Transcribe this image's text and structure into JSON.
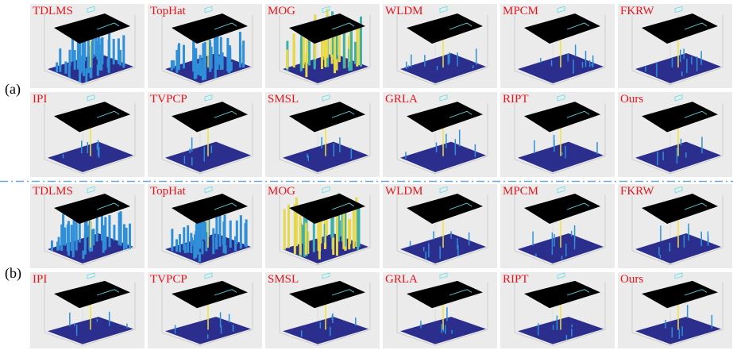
{
  "figure": {
    "groups": [
      {
        "label": "(a)",
        "rows": [
          [
            "TDLMS",
            "TopHat",
            "MOG",
            "WLDM",
            "MPCM",
            "FKRW"
          ],
          [
            "IPI",
            "TVPCP",
            "SMSL",
            "GRLA",
            "RIPT",
            "Ours"
          ]
        ]
      },
      {
        "label": "(b)",
        "rows": [
          [
            "TDLMS",
            "TopHat",
            "MOG",
            "WLDM",
            "MPCM",
            "FKRW"
          ],
          [
            "IPI",
            "TVPCP",
            "SMSL",
            "GRLA",
            "RIPT",
            "Ours"
          ]
        ]
      }
    ]
  }
}
